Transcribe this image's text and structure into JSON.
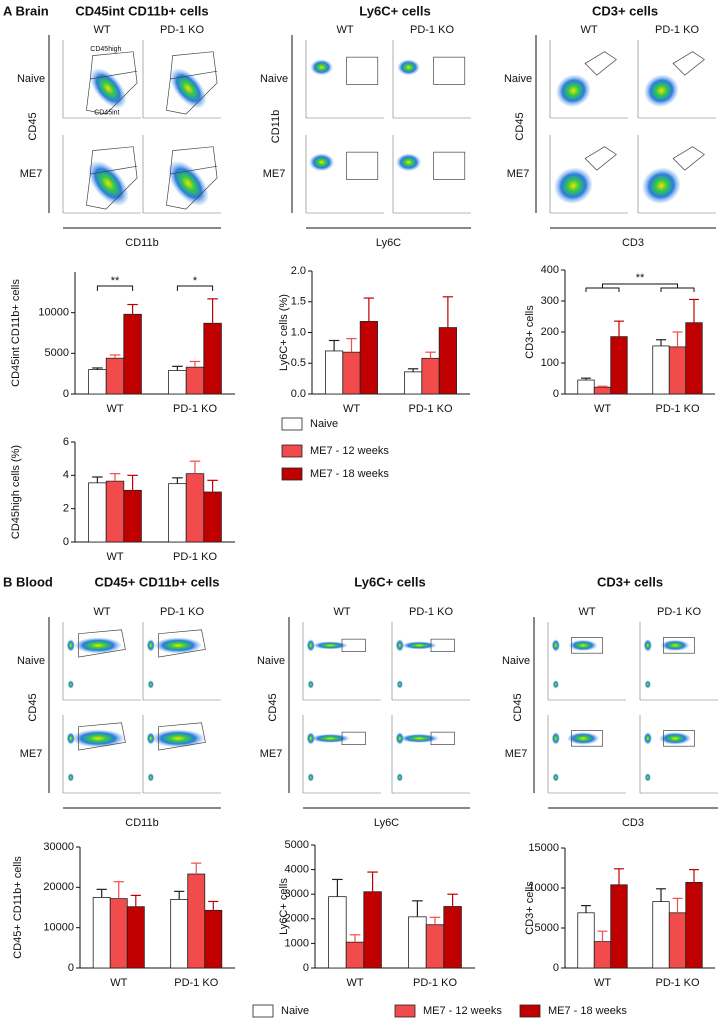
{
  "figure": {
    "sections": [
      {
        "label": "A Brain"
      },
      {
        "label": "B Blood"
      }
    ],
    "flow": [
      {
        "title": "CD45int CD11b+ cells",
        "columns": [
          "WT",
          "PD-1 KO"
        ],
        "rows": [
          "Naive",
          "ME7"
        ],
        "x_label": "CD11b",
        "y_label": "CD45",
        "gate_labels": [
          "CD45high",
          "CD45int"
        ]
      },
      {
        "title": "Ly6C+ cells",
        "columns": [
          "WT",
          "PD-1 KO"
        ],
        "rows": [
          "Naive",
          "ME7"
        ],
        "x_label": "Ly6C",
        "y_label": "CD11b"
      },
      {
        "title": "CD3+ cells",
        "columns": [
          "WT",
          "PD-1 KO"
        ],
        "rows": [
          "Naive",
          "ME7"
        ],
        "x_label": "CD3",
        "y_label": "CD45"
      },
      {
        "title": "CD45+ CD11b+ cells",
        "columns": [
          "WT",
          "PD-1 KO"
        ],
        "rows": [
          "Naive",
          "ME7"
        ],
        "x_label": "CD11b",
        "y_label": "CD45"
      },
      {
        "title": "Ly6C+ cells",
        "columns": [
          "WT",
          "PD-1 KO"
        ],
        "rows": [
          "Naive",
          "ME7"
        ],
        "x_label": "Ly6C",
        "y_label": "CD45"
      },
      {
        "title": "CD3+ cells",
        "columns": [
          "WT",
          "PD-1 KO"
        ],
        "rows": [
          "Naive",
          "ME7"
        ],
        "x_label": "CD3",
        "y_label": "CD45"
      }
    ]
  },
  "chart_data": [
    {
      "type": "bar",
      "y_label": "CD45int CD11b+ cells",
      "categories": [
        "WT",
        "PD-1 KO"
      ],
      "series": [
        {
          "name": "Naive",
          "color": "#ffffff",
          "values": [
            3000,
            2900
          ],
          "errors": [
            200,
            500
          ]
        },
        {
          "name": "ME7 - 12 weeks",
          "color": "#f24b4b",
          "values": [
            4400,
            3300
          ],
          "errors": [
            400,
            700
          ]
        },
        {
          "name": "ME7 - 18 weeks",
          "color": "#c00000",
          "values": [
            9800,
            8700
          ],
          "errors": [
            1200,
            3000
          ]
        }
      ],
      "ylim": [
        0,
        15000
      ],
      "yticks": [
        0,
        5000,
        10000
      ],
      "annotations": [
        "**",
        "*"
      ]
    },
    {
      "type": "bar",
      "y_label": "Ly6C+ cells (%)",
      "categories": [
        "WT",
        "PD-1 KO"
      ],
      "series": [
        {
          "color": "#ffffff",
          "values": [
            0.7,
            0.36
          ],
          "errors": [
            0.17,
            0.05
          ]
        },
        {
          "color": "#f24b4b",
          "values": [
            0.68,
            0.58
          ],
          "errors": [
            0.22,
            0.1
          ]
        },
        {
          "color": "#c00000",
          "values": [
            1.18,
            1.08
          ],
          "errors": [
            0.38,
            0.5
          ]
        }
      ],
      "ylim": [
        0,
        2
      ],
      "yticks": [
        {
          "value": 0,
          "label": "0.0"
        },
        0.5,
        {
          "value": 1,
          "label": "1.0"
        },
        1.5,
        {
          "value": 2,
          "label": "2.0"
        }
      ]
    },
    {
      "type": "bar",
      "y_label": "CD3+ cells",
      "categories": [
        "WT",
        "PD-1 KO"
      ],
      "series": [
        {
          "color": "#ffffff",
          "values": [
            45,
            155
          ],
          "errors": [
            6,
            20
          ]
        },
        {
          "color": "#f24b4b",
          "values": [
            22,
            152
          ],
          "errors": [
            3,
            48
          ]
        },
        {
          "color": "#c00000",
          "values": [
            185,
            230
          ],
          "errors": [
            50,
            75
          ]
        }
      ],
      "ylim": [
        0,
        400
      ],
      "yticks": [
        0,
        100,
        200,
        300,
        400
      ],
      "annotations": [
        "**"
      ]
    },
    {
      "type": "bar",
      "y_label": "CD45high cells (%)",
      "categories": [
        "WT",
        "PD-1 KO"
      ],
      "series": [
        {
          "color": "#ffffff",
          "values": [
            3.55,
            3.5
          ],
          "errors": [
            0.35,
            0.35
          ]
        },
        {
          "color": "#f24b4b",
          "values": [
            3.65,
            4.1
          ],
          "errors": [
            0.45,
            0.75
          ]
        },
        {
          "color": "#c00000",
          "values": [
            3.1,
            3.0
          ],
          "errors": [
            0.9,
            0.7
          ]
        }
      ],
      "ylim": [
        0,
        6
      ],
      "yticks": [
        0,
        2,
        4,
        6
      ]
    },
    {
      "type": "bar",
      "y_label": "CD45+ CD11b+ cells",
      "categories": [
        "WT",
        "PD-1 KO"
      ],
      "series": [
        {
          "name": "Naive",
          "color": "#ffffff",
          "values": [
            17500,
            17000
          ],
          "errors": [
            2000,
            2000
          ]
        },
        {
          "name": "ME7 - 12 weeks",
          "color": "#f24b4b",
          "values": [
            17200,
            23300
          ],
          "errors": [
            4200,
            2700
          ]
        },
        {
          "name": "ME7 - 18 weeks",
          "color": "#c00000",
          "values": [
            15200,
            14300
          ],
          "errors": [
            2800,
            2200
          ]
        }
      ],
      "ylim": [
        0,
        30000
      ],
      "yticks": [
        0,
        10000,
        20000,
        30000
      ]
    },
    {
      "type": "bar",
      "y_label": "Ly6C+ cells",
      "categories": [
        "WT",
        "PD-1 KO"
      ],
      "series": [
        {
          "color": "#ffffff",
          "values": [
            2900,
            2080
          ],
          "errors": [
            700,
            650
          ]
        },
        {
          "color": "#f24b4b",
          "values": [
            1050,
            1760
          ],
          "errors": [
            300,
            300
          ]
        },
        {
          "color": "#c00000",
          "values": [
            3100,
            2500
          ],
          "errors": [
            800,
            500
          ]
        }
      ],
      "ylim": [
        0,
        5000
      ],
      "yticks": [
        0,
        1000,
        2000,
        3000,
        4000,
        5000
      ]
    },
    {
      "type": "bar",
      "y_label": "CD3+ cells",
      "categories": [
        "WT",
        "PD-1 KO"
      ],
      "series": [
        {
          "color": "#ffffff",
          "values": [
            6900,
            8300
          ],
          "errors": [
            900,
            1600
          ]
        },
        {
          "color": "#f24b4b",
          "values": [
            3300,
            6900
          ],
          "errors": [
            1300,
            1800
          ]
        },
        {
          "color": "#c00000",
          "values": [
            10400,
            10700
          ],
          "errors": [
            2000,
            1600
          ]
        }
      ],
      "ylim": [
        0,
        15000
      ],
      "yticks": [
        0,
        5000,
        10000,
        15000
      ]
    }
  ]
}
